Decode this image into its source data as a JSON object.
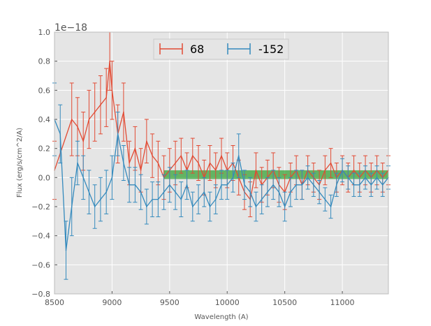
{
  "chart_data": {
    "type": "line",
    "title": "",
    "xlabel": "Wavelength (A)",
    "ylabel": "Flux (erg/s/cm^2/A)",
    "y_offset_label": "1e−18",
    "xlim": [
      8500,
      11400
    ],
    "ylim": [
      -0.8,
      1.0
    ],
    "x_ticks": [
      8500,
      9000,
      9500,
      10000,
      10500,
      11000
    ],
    "x_tick_labels": [
      "8500",
      "9000",
      "9500",
      "10000",
      "10500",
      "11000"
    ],
    "y_ticks": [
      -0.8,
      -0.6,
      -0.4,
      -0.2,
      0.0,
      0.2,
      0.4,
      0.6,
      0.8,
      1.0
    ],
    "y_tick_labels": [
      "−0.8",
      "−0.6",
      "−0.4",
      "−0.2",
      "0.0",
      "0.2",
      "0.4",
      "0.6",
      "0.8",
      "1.0"
    ],
    "grid": true,
    "legend_position": "top-center",
    "band": {
      "x_from": 9450,
      "x_to": 11400,
      "y_from": -0.01,
      "y_to": 0.05,
      "color": "#2ca02c"
    },
    "series": [
      {
        "name": "68",
        "color": "#e24a33",
        "x": [
          8500,
          8650,
          8700,
          8750,
          8800,
          8850,
          8900,
          8950,
          8980,
          9000,
          9050,
          9100,
          9150,
          9200,
          9250,
          9300,
          9350,
          9400,
          9450,
          9500,
          9550,
          9600,
          9650,
          9700,
          9750,
          9800,
          9850,
          9900,
          9950,
          10000,
          10050,
          10100,
          10150,
          10200,
          10250,
          10300,
          10350,
          10400,
          10450,
          10500,
          10550,
          10600,
          10650,
          10700,
          10750,
          10800,
          10850,
          10900,
          10950,
          11000,
          11050,
          11100,
          11150,
          11200,
          11250,
          11300,
          11350,
          11400
        ],
        "y": [
          0.05,
          0.4,
          0.35,
          0.25,
          0.4,
          0.45,
          0.5,
          0.55,
          0.8,
          0.6,
          0.3,
          0.45,
          0.1,
          0.2,
          0.05,
          0.25,
          0.15,
          0.1,
          0.0,
          0.05,
          0.1,
          0.15,
          0.05,
          0.15,
          0.1,
          0.0,
          0.1,
          0.05,
          0.15,
          0.05,
          0.1,
          0.0,
          -0.1,
          -0.15,
          0.05,
          -0.05,
          0.0,
          0.05,
          -0.05,
          -0.1,
          0.0,
          0.05,
          -0.05,
          0.05,
          0.0,
          -0.05,
          0.05,
          0.1,
          0.0,
          0.05,
          0.0,
          0.05,
          0.0,
          0.05,
          0.0,
          0.05,
          0.0,
          0.05
        ],
        "err": [
          0.2,
          0.25,
          0.2,
          0.2,
          0.2,
          0.2,
          0.2,
          0.2,
          0.2,
          0.2,
          0.2,
          0.2,
          0.15,
          0.15,
          0.15,
          0.15,
          0.15,
          0.15,
          0.15,
          0.15,
          0.15,
          0.12,
          0.12,
          0.12,
          0.12,
          0.12,
          0.12,
          0.12,
          0.12,
          0.12,
          0.12,
          0.12,
          0.12,
          0.12,
          0.12,
          0.12,
          0.12,
          0.12,
          0.12,
          0.12,
          0.1,
          0.1,
          0.1,
          0.1,
          0.1,
          0.1,
          0.1,
          0.1,
          0.1,
          0.1,
          0.1,
          0.1,
          0.1,
          0.1,
          0.1,
          0.1,
          0.1,
          0.1
        ]
      },
      {
        "name": "-152",
        "color": "#348abd",
        "x": [
          8500,
          8550,
          8600,
          8650,
          8700,
          8750,
          8800,
          8850,
          8900,
          8950,
          9000,
          9050,
          9100,
          9150,
          9200,
          9250,
          9300,
          9350,
          9400,
          9450,
          9500,
          9550,
          9600,
          9650,
          9700,
          9750,
          9800,
          9850,
          9900,
          9950,
          10000,
          10050,
          10100,
          10150,
          10200,
          10250,
          10300,
          10350,
          10400,
          10450,
          10500,
          10550,
          10600,
          10650,
          10700,
          10750,
          10800,
          10850,
          10900,
          10950,
          11000,
          11050,
          11100,
          11150,
          11200,
          11250,
          11300,
          11350,
          11400
        ],
        "y": [
          0.4,
          0.3,
          -0.5,
          -0.2,
          0.1,
          0.0,
          -0.1,
          -0.2,
          -0.15,
          -0.1,
          0.0,
          0.3,
          0.1,
          -0.05,
          -0.05,
          -0.1,
          -0.2,
          -0.15,
          -0.15,
          -0.1,
          -0.05,
          -0.1,
          -0.15,
          -0.05,
          -0.2,
          -0.15,
          -0.1,
          -0.2,
          -0.15,
          -0.05,
          -0.05,
          0.0,
          0.15,
          -0.05,
          -0.1,
          -0.2,
          -0.15,
          -0.1,
          -0.05,
          -0.1,
          -0.2,
          -0.1,
          -0.05,
          -0.05,
          0.0,
          -0.05,
          -0.1,
          -0.15,
          -0.2,
          -0.05,
          0.05,
          0.0,
          -0.05,
          -0.05,
          0.0,
          -0.05,
          0.0,
          -0.05,
          0.0
        ],
        "err": [
          0.25,
          0.2,
          0.2,
          0.2,
          0.15,
          0.15,
          0.15,
          0.15,
          0.15,
          0.15,
          0.15,
          0.15,
          0.12,
          0.12,
          0.12,
          0.12,
          0.12,
          0.12,
          0.12,
          0.12,
          0.12,
          0.12,
          0.12,
          0.1,
          0.1,
          0.1,
          0.1,
          0.1,
          0.1,
          0.1,
          0.1,
          0.1,
          0.15,
          0.1,
          0.1,
          0.1,
          0.1,
          0.1,
          0.1,
          0.1,
          0.1,
          0.1,
          0.1,
          0.1,
          0.08,
          0.08,
          0.08,
          0.08,
          0.08,
          0.08,
          0.08,
          0.08,
          0.08,
          0.08,
          0.08,
          0.08,
          0.08,
          0.08,
          0.08
        ]
      }
    ]
  }
}
